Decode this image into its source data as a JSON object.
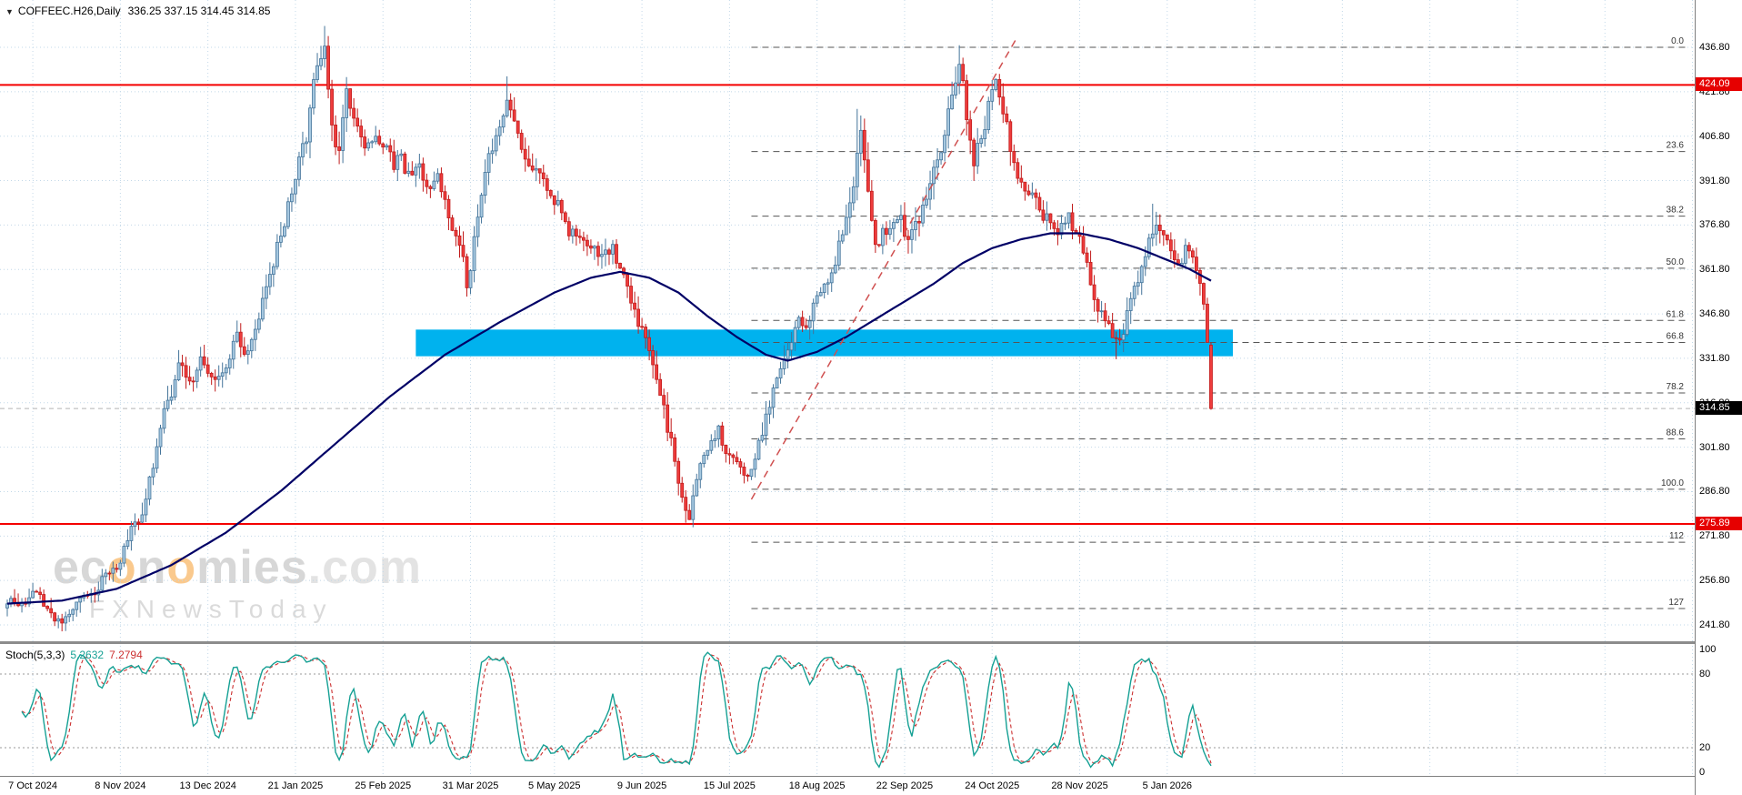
{
  "window": {
    "symbol_title": "COFFEEC.H26,Daily",
    "ohlc_display": "336.25 337.15 314.45 314.85",
    "watermark": {
      "logo_segments": [
        {
          "text": "ec",
          "color": "#b0b0b0"
        },
        {
          "text": "o",
          "color": "#f7941d"
        },
        {
          "text": "n",
          "color": "#b0b0b0"
        },
        {
          "text": "o",
          "color": "#f7941d"
        },
        {
          "text": "mies",
          "color": "#b0b0b0"
        },
        {
          "text": ".com",
          "color": "#c9c9c9"
        }
      ],
      "tagline": "FXNewsToday"
    }
  },
  "chart_data": {
    "type": "candlestick",
    "title": "COFFEEC.H26 Daily",
    "timeframe": "Daily",
    "x_ticks": [
      {
        "label": "7 Oct 2024",
        "bar": 7
      },
      {
        "label": "8 Nov 2024",
        "bar": 31
      },
      {
        "label": "13 Dec 2024",
        "bar": 55
      },
      {
        "label": "21 Jan 2025",
        "bar": 79
      },
      {
        "label": "25 Feb 2025",
        "bar": 103
      },
      {
        "label": "31 Mar 2025",
        "bar": 127
      },
      {
        "label": "5 May 2025",
        "bar": 150
      },
      {
        "label": "9 Jun 2025",
        "bar": 174
      },
      {
        "label": "15 Jul 2025",
        "bar": 198
      },
      {
        "label": "18 Aug 2025",
        "bar": 222
      },
      {
        "label": "22 Sep 2025",
        "bar": 246
      },
      {
        "label": "24 Oct 2025",
        "bar": 270
      },
      {
        "label": "28 Nov 2025",
        "bar": 294
      },
      {
        "label": "5 Jan 2026",
        "bar": 318
      }
    ],
    "y_axis": {
      "tick_values": [
        436.8,
        421.8,
        406.8,
        391.8,
        376.8,
        361.8,
        346.8,
        331.8,
        316.8,
        301.8,
        286.8,
        271.8,
        256.8,
        241.8
      ],
      "step": 15
    },
    "last_bar": {
      "open": 336.25,
      "high": 337.15,
      "low": 314.45,
      "close": 314.85
    },
    "levels": {
      "resistance": 424.09,
      "support": 275.89,
      "current_price": 314.85
    },
    "fibonacci": {
      "high": 436.8,
      "low": 287.6,
      "start_bar": 204,
      "levels": [
        {
          "pct": 0,
          "label": "0.0"
        },
        {
          "pct": 23.6,
          "label": "23.6"
        },
        {
          "pct": 38.2,
          "label": "38.2"
        },
        {
          "pct": 50,
          "label": "50.0"
        },
        {
          "pct": 61.8,
          "label": "61.8"
        },
        {
          "pct": 66.8,
          "label": "66.8"
        },
        {
          "pct": 78.2,
          "label": "78.2"
        },
        {
          "pct": 88.6,
          "label": "88.6"
        },
        {
          "pct": 100,
          "label": "100.0"
        },
        {
          "pct": 112,
          "label": "112"
        },
        {
          "pct": 127,
          "label": "127"
        }
      ]
    },
    "zone": {
      "price_top": 341.5,
      "price_bottom": 332.5,
      "start_bar": 112,
      "end_bar": 336,
      "color": "#00b2ee"
    },
    "trendline": {
      "from_bar": 204,
      "from_price": 284.2,
      "to_bar": 277,
      "to_price": 440.5
    },
    "bars_total": 331,
    "seed": 20260116,
    "price_path_anchors": [
      [
        0,
        250,
        6
      ],
      [
        7,
        252,
        7
      ],
      [
        12,
        246,
        6
      ],
      [
        15,
        243,
        5
      ],
      [
        20,
        250,
        6
      ],
      [
        25,
        255,
        6
      ],
      [
        30,
        263,
        6
      ],
      [
        36,
        278,
        7
      ],
      [
        40,
        295,
        8
      ],
      [
        44,
        315,
        9
      ],
      [
        47,
        330,
        8
      ],
      [
        50,
        322,
        8
      ],
      [
        53,
        332,
        7
      ],
      [
        56,
        324,
        7
      ],
      [
        60,
        333,
        7
      ],
      [
        63,
        340,
        7
      ],
      [
        66,
        334,
        6
      ],
      [
        70,
        350,
        7
      ],
      [
        74,
        368,
        8
      ],
      [
        78,
        388,
        8
      ],
      [
        82,
        408,
        9
      ],
      [
        85,
        428,
        10
      ],
      [
        87,
        441,
        9
      ],
      [
        89,
        414,
        10
      ],
      [
        91,
        400,
        9
      ],
      [
        93,
        417,
        9
      ],
      [
        95,
        408,
        8
      ],
      [
        98,
        398,
        8
      ],
      [
        101,
        410,
        8
      ],
      [
        103,
        404,
        8
      ],
      [
        106,
        396,
        8
      ],
      [
        108,
        400,
        8
      ],
      [
        110,
        393,
        7
      ],
      [
        112,
        398,
        7
      ],
      [
        115,
        390,
        7
      ],
      [
        118,
        395,
        7
      ],
      [
        121,
        382,
        8
      ],
      [
        124,
        368,
        8
      ],
      [
        126,
        356,
        8
      ],
      [
        128,
        372,
        8
      ],
      [
        131,
        390,
        8
      ],
      [
        134,
        408,
        9
      ],
      [
        137,
        422,
        9
      ],
      [
        139,
        415,
        8
      ],
      [
        142,
        402,
        8
      ],
      [
        145,
        395,
        8
      ],
      [
        148,
        390,
        7
      ],
      [
        151,
        383,
        7
      ],
      [
        154,
        376,
        7
      ],
      [
        158,
        372,
        7
      ],
      [
        162,
        366,
        7
      ],
      [
        166,
        370,
        7
      ],
      [
        169,
        360,
        8
      ],
      [
        172,
        348,
        8
      ],
      [
        175,
        336,
        8
      ],
      [
        178,
        322,
        9
      ],
      [
        181,
        308,
        9
      ],
      [
        183,
        296,
        8
      ],
      [
        185,
        284,
        7
      ],
      [
        187,
        280,
        6
      ],
      [
        189,
        290,
        7
      ],
      [
        192,
        300,
        7
      ],
      [
        195,
        306,
        7
      ],
      [
        198,
        298,
        6
      ],
      [
        201,
        292,
        6
      ],
      [
        203,
        290,
        6
      ],
      [
        205,
        296,
        7
      ],
      [
        208,
        312,
        8
      ],
      [
        211,
        326,
        8
      ],
      [
        214,
        336,
        8
      ],
      [
        217,
        342,
        8
      ],
      [
        220,
        348,
        8
      ],
      [
        223,
        355,
        8
      ],
      [
        226,
        362,
        8
      ],
      [
        229,
        372,
        9
      ],
      [
        232,
        395,
        10
      ],
      [
        234,
        408,
        10
      ],
      [
        236,
        386,
        10
      ],
      [
        238,
        368,
        9
      ],
      [
        241,
        375,
        8
      ],
      [
        244,
        382,
        8
      ],
      [
        247,
        372,
        8
      ],
      [
        250,
        380,
        8
      ],
      [
        253,
        390,
        9
      ],
      [
        256,
        405,
        9
      ],
      [
        259,
        422,
        10
      ],
      [
        261,
        434,
        10
      ],
      [
        263,
        414,
        10
      ],
      [
        265,
        400,
        9
      ],
      [
        267,
        408,
        9
      ],
      [
        269,
        418,
        9
      ],
      [
        271,
        421,
        9
      ],
      [
        273,
        412,
        9
      ],
      [
        276,
        398,
        8
      ],
      [
        279,
        388,
        8
      ],
      [
        282,
        383,
        7
      ],
      [
        285,
        379,
        7
      ],
      [
        288,
        375,
        7
      ],
      [
        291,
        378,
        7
      ],
      [
        294,
        372,
        7
      ],
      [
        297,
        358,
        8
      ],
      [
        300,
        346,
        8
      ],
      [
        303,
        338,
        8
      ],
      [
        305,
        336,
        7
      ],
      [
        308,
        350,
        8
      ],
      [
        311,
        364,
        8
      ],
      [
        313,
        374,
        8
      ],
      [
        315,
        378,
        8
      ],
      [
        317,
        372,
        7
      ],
      [
        319,
        366,
        7
      ],
      [
        321,
        362,
        7
      ],
      [
        323,
        368,
        7
      ],
      [
        325,
        362,
        7
      ],
      [
        327,
        352,
        8
      ],
      [
        329,
        339,
        8
      ],
      [
        330,
        336.5,
        8
      ]
    ],
    "ma_anchors": [
      [
        0,
        249
      ],
      [
        15,
        250
      ],
      [
        30,
        254
      ],
      [
        45,
        262
      ],
      [
        60,
        273
      ],
      [
        75,
        287
      ],
      [
        90,
        303
      ],
      [
        105,
        319
      ],
      [
        120,
        333
      ],
      [
        135,
        344
      ],
      [
        150,
        354
      ],
      [
        160,
        359
      ],
      [
        168,
        361
      ],
      [
        176,
        359
      ],
      [
        184,
        354
      ],
      [
        192,
        346
      ],
      [
        200,
        339
      ],
      [
        208,
        333
      ],
      [
        214,
        331
      ],
      [
        222,
        334
      ],
      [
        230,
        339
      ],
      [
        238,
        345
      ],
      [
        246,
        351
      ],
      [
        254,
        357
      ],
      [
        262,
        364
      ],
      [
        270,
        369
      ],
      [
        278,
        372
      ],
      [
        286,
        374
      ],
      [
        294,
        374
      ],
      [
        302,
        372
      ],
      [
        310,
        369
      ],
      [
        318,
        365
      ],
      [
        324,
        362
      ],
      [
        330,
        358
      ]
    ],
    "forced_extremes": [
      {
        "bar": 15,
        "low": 240.5
      },
      {
        "bar": 87,
        "high": 444.0
      },
      {
        "bar": 137,
        "high": 427.0
      },
      {
        "bar": 186,
        "low": 276.3
      },
      {
        "bar": 233,
        "high": 416.0
      },
      {
        "bar": 261,
        "high": 437.5
      },
      {
        "bar": 270,
        "high": 424.5
      },
      {
        "bar": 304,
        "low": 331.5
      },
      {
        "bar": 314,
        "high": 384.0
      }
    ],
    "stochastic": {
      "label": "Stoch(5,3,3)",
      "k_value": "5.2632",
      "d_value": "7.2794",
      "k_period": 5,
      "slowing": 3,
      "d_period": 3,
      "scale_ticks": [
        100,
        80,
        20,
        0
      ],
      "upper_level": 80,
      "lower_level": 20
    },
    "colors": {
      "up_fill": "#a6c8e0",
      "up_border": "#44749a",
      "down_fill": "#ee3c3c",
      "down_border": "#c11b1b",
      "ma": "#000066",
      "grid": "#c2d8e8",
      "level_line": "#f40000",
      "stoch_k": "#15a094",
      "stoch_d": "#cc3030",
      "fib_line": "#555555",
      "trend_line": "#d05050",
      "bid_line": "#b4b4b4"
    }
  }
}
